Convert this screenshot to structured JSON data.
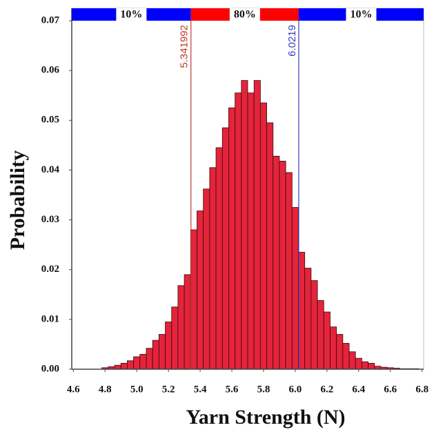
{
  "chart_data": {
    "type": "histogram",
    "x_label": "Yarn Strength (N)",
    "y_label": "Probability",
    "bins": [
      4.78,
      4.82,
      4.86,
      4.9,
      4.94,
      4.98,
      5.02,
      5.06,
      5.1,
      5.14,
      5.18,
      5.22,
      5.26,
      5.3,
      5.34,
      5.38,
      5.42,
      5.46,
      5.5,
      5.54,
      5.58,
      5.62,
      5.66,
      5.7,
      5.74,
      5.78,
      5.82,
      5.86,
      5.9,
      5.94,
      5.98,
      6.02,
      6.06,
      6.1,
      6.14,
      6.18,
      6.22,
      6.26,
      6.3,
      6.34,
      6.38,
      6.42,
      6.46,
      6.5,
      6.54,
      6.58,
      6.62,
      6.66,
      6.7,
      6.74,
      6.78
    ],
    "values": [
      0.0003,
      0.0005,
      0.0008,
      0.0012,
      0.0017,
      0.0025,
      0.003,
      0.0042,
      0.0058,
      0.007,
      0.0095,
      0.0125,
      0.0168,
      0.019,
      0.028,
      0.0318,
      0.0362,
      0.0405,
      0.0445,
      0.0485,
      0.0525,
      0.0555,
      0.058,
      0.0555,
      0.058,
      0.0535,
      0.0495,
      0.0428,
      0.0418,
      0.0395,
      0.0325,
      0.0235,
      0.0203,
      0.0178,
      0.0138,
      0.0115,
      0.0085,
      0.007,
      0.0052,
      0.0035,
      0.0022,
      0.0015,
      0.0012,
      0.0006,
      0.0004,
      0.0003,
      0.0002,
      0.0001,
      0.0001,
      0.0001
    ],
    "color": "#e3243b",
    "xlim": [
      4.59,
      6.81
    ],
    "ylim": [
      0,
      0.0725
    ],
    "xticks": [
      4.6,
      4.8,
      {
        "value": 5.0,
        "label": "5.0"
      },
      5.2,
      5.4,
      5.6,
      5.8,
      {
        "value": 6.0,
        "label": "6.0"
      },
      6.2,
      6.4,
      6.6,
      6.8
    ],
    "yticks": [
      {
        "value": 0,
        "label": "0.00"
      },
      0.01,
      0.02,
      0.03,
      0.04,
      0.05,
      0.06,
      0.07
    ],
    "cuts": [
      {
        "value": 5.341992,
        "color": "#c0392b"
      },
      {
        "value": 6.0219,
        "color": "#3a3ac0"
      }
    ],
    "bands": [
      {
        "label": "10%",
        "color": "#0000ff"
      },
      {
        "label": "80%",
        "color": "#ff0000"
      },
      {
        "label": "10%",
        "color": "#0000ff"
      }
    ]
  }
}
